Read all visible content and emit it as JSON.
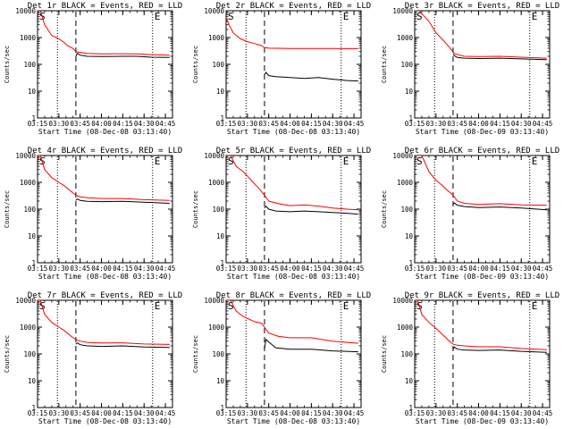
{
  "figure": {
    "background": "#ffffff",
    "colors": {
      "events": "#000000",
      "lld": "#ff0000",
      "axes": "#000000"
    }
  },
  "chart_data": [
    {
      "type": "line",
      "title": "Det 1r BLACK = Events, RED = LLD",
      "xlabel": "Start Time (08-Dec-08 03:13:40)",
      "ylabel": "Counts/sec",
      "yscale": "log",
      "ylim": [
        1,
        10000
      ],
      "y_ticks": [
        "1",
        "10",
        "100",
        "1000",
        "10000"
      ],
      "xlim": [
        "03:15",
        "04:50"
      ],
      "x_ticks": [
        "03:15",
        "03:30",
        "03:45",
        "04:00",
        "04:15",
        "04:30",
        "04:45"
      ],
      "corner_labels": {
        "left": "S",
        "right": "E"
      },
      "markers": [
        {
          "time": "03:29",
          "style": "dotted"
        },
        {
          "time": "03:42",
          "style": "dashed"
        },
        {
          "time": "04:36",
          "style": "dotted"
        }
      ],
      "series": [
        {
          "name": "LLD",
          "color": "#ff0000",
          "x": [
            "03:13",
            "03:17",
            "03:20",
            "03:25",
            "03:30",
            "03:33",
            "03:36",
            "03:40",
            "03:42",
            "03:44",
            "03:50",
            "04:00",
            "04:15",
            "04:25",
            "04:35",
            "04:48"
          ],
          "y": [
            10000,
            10000,
            3000,
            1200,
            900,
            700,
            500,
            390,
            300,
            285,
            255,
            245,
            250,
            245,
            230,
            220
          ]
        },
        {
          "name": "Events",
          "color": "#000000",
          "x": [
            "03:42",
            "03:43",
            "03:45",
            "03:50",
            "04:00",
            "04:15",
            "04:25",
            "04:35",
            "04:48"
          ],
          "y": [
            200,
            260,
            220,
            200,
            195,
            200,
            200,
            185,
            180
          ]
        }
      ]
    },
    {
      "type": "line",
      "title": "Det 2r BLACK = Events, RED = LLD",
      "xlabel": "Start Time (08-Dec-08 03:13:40)",
      "ylabel": "Counts/sec",
      "yscale": "log",
      "ylim": [
        1,
        10000
      ],
      "y_ticks": [
        "1",
        "10",
        "100",
        "1000",
        "10000"
      ],
      "xlim": [
        "03:15",
        "04:50"
      ],
      "x_ticks": [
        "03:15",
        "03:30",
        "03:45",
        "04:00",
        "04:15",
        "04:30",
        "04:45"
      ],
      "corner_labels": {
        "left": "S",
        "right": "E"
      },
      "markers": [
        {
          "time": "03:29",
          "style": "dotted"
        },
        {
          "time": "03:42",
          "style": "dashed"
        },
        {
          "time": "04:36",
          "style": "dotted"
        }
      ],
      "series": [
        {
          "name": "LLD",
          "color": "#ff0000",
          "x": [
            "03:13",
            "03:17",
            "03:20",
            "03:25",
            "03:30",
            "03:35",
            "03:40",
            "03:42",
            "03:45",
            "04:00",
            "04:15",
            "04:30",
            "04:48"
          ],
          "y": [
            10000,
            3000,
            1500,
            900,
            700,
            600,
            500,
            420,
            400,
            390,
            390,
            390,
            385
          ]
        },
        {
          "name": "Events",
          "color": "#000000",
          "x": [
            "03:42",
            "03:43",
            "03:45",
            "03:50",
            "04:00",
            "04:10",
            "04:20",
            "04:30",
            "04:40",
            "04:48"
          ],
          "y": [
            40,
            50,
            38,
            35,
            32,
            30,
            32,
            28,
            25,
            24
          ]
        }
      ]
    },
    {
      "type": "line",
      "title": "Det 3r BLACK = Events, RED = LLD",
      "xlabel": "Start Time (08-Dec-09 03:13:40)",
      "ylabel": "Counts/sec",
      "yscale": "log",
      "ylim": [
        1,
        10000
      ],
      "y_ticks": [
        "1",
        "10",
        "100",
        "1000",
        "10000"
      ],
      "xlim": [
        "03:15",
        "04:50"
      ],
      "x_ticks": [
        "03:15",
        "03:30",
        "03:45",
        "04:00",
        "04:15",
        "04:30",
        "04:45"
      ],
      "corner_labels": {
        "left": "S",
        "right": "E"
      },
      "markers": [
        {
          "time": "03:29",
          "style": "dotted"
        },
        {
          "time": "03:42",
          "style": "dashed"
        },
        {
          "time": "04:36",
          "style": "dotted"
        }
      ],
      "series": [
        {
          "name": "LLD",
          "color": "#ff0000",
          "x": [
            "03:13",
            "03:18",
            "03:25",
            "03:30",
            "03:35",
            "03:40",
            "03:43",
            "03:50",
            "04:00",
            "04:15",
            "04:30",
            "04:48"
          ],
          "y": [
            10000,
            10000,
            4000,
            1500,
            800,
            400,
            250,
            200,
            195,
            200,
            185,
            170
          ]
        },
        {
          "name": "Events",
          "color": "#000000",
          "x": [
            "03:42",
            "03:43",
            "03:45",
            "03:50",
            "04:00",
            "04:15",
            "04:30",
            "04:48"
          ],
          "y": [
            240,
            210,
            180,
            170,
            165,
            170,
            160,
            150
          ]
        }
      ]
    },
    {
      "type": "line",
      "title": "Det 4r BLACK = Events, RED = LLD",
      "xlabel": "Start Time (08-Dec-08 03:13:40)",
      "ylabel": "Counts/sec",
      "yscale": "log",
      "ylim": [
        1,
        10000
      ],
      "y_ticks": [
        "1",
        "10",
        "100",
        "1000",
        "10000"
      ],
      "xlim": [
        "03:15",
        "04:50"
      ],
      "x_ticks": [
        "03:15",
        "03:30",
        "03:45",
        "04:00",
        "04:15",
        "04:30",
        "04:45"
      ],
      "corner_labels": {
        "left": "S",
        "right": "E"
      },
      "markers": [
        {
          "time": "03:29",
          "style": "dotted"
        },
        {
          "time": "03:42",
          "style": "dashed"
        },
        {
          "time": "04:36",
          "style": "dotted"
        }
      ],
      "series": [
        {
          "name": "LLD",
          "color": "#ff0000",
          "x": [
            "03:13",
            "03:17",
            "03:20",
            "03:25",
            "03:30",
            "03:33",
            "03:36",
            "03:40",
            "03:42",
            "03:45",
            "03:50",
            "04:00",
            "04:15",
            "04:30",
            "04:48"
          ],
          "y": [
            10000,
            10000,
            3000,
            1500,
            1000,
            800,
            600,
            400,
            330,
            290,
            265,
            250,
            250,
            225,
            210
          ]
        },
        {
          "name": "Events",
          "color": "#000000",
          "x": [
            "03:42",
            "03:43",
            "03:45",
            "03:50",
            "04:00",
            "04:15",
            "04:30",
            "04:48"
          ],
          "y": [
            210,
            240,
            210,
            195,
            190,
            195,
            180,
            165
          ]
        }
      ]
    },
    {
      "type": "line",
      "title": "Det 5r BLACK = Events, RED = LLD",
      "xlabel": "Start Time (08-Dec-08 03:13:40)",
      "ylabel": "Counts/sec",
      "yscale": "log",
      "ylim": [
        1,
        10000
      ],
      "y_ticks": [
        "1",
        "10",
        "100",
        "1000",
        "10000"
      ],
      "xlim": [
        "03:15",
        "04:50"
      ],
      "x_ticks": [
        "03:15",
        "03:30",
        "03:45",
        "04:00",
        "04:15",
        "04:30",
        "04:45"
      ],
      "corner_labels": {
        "left": "S",
        "right": "E"
      },
      "markers": [
        {
          "time": "03:29",
          "style": "dotted"
        },
        {
          "time": "03:42",
          "style": "dashed"
        },
        {
          "time": "04:36",
          "style": "dotted"
        }
      ],
      "series": [
        {
          "name": "LLD",
          "color": "#ff0000",
          "x": [
            "03:13",
            "03:18",
            "03:22",
            "03:27",
            "03:31",
            "03:34",
            "03:38",
            "03:42",
            "03:45",
            "03:52",
            "04:00",
            "04:10",
            "04:20",
            "04:30",
            "04:40",
            "04:48"
          ],
          "y": [
            10000,
            10000,
            4000,
            2500,
            1500,
            1000,
            600,
            330,
            200,
            160,
            135,
            145,
            130,
            110,
            100,
            95
          ]
        },
        {
          "name": "Events",
          "color": "#000000",
          "x": [
            "03:42",
            "03:43",
            "03:45",
            "03:50",
            "04:00",
            "04:10",
            "04:20",
            "04:30",
            "04:40",
            "04:48"
          ],
          "y": [
            110,
            130,
            100,
            85,
            80,
            85,
            80,
            75,
            70,
            65
          ]
        }
      ]
    },
    {
      "type": "line",
      "title": "Det 6r BLACK = Events, RED = LLD",
      "xlabel": "Start Time (08-Dec-09 03:13:40)",
      "ylabel": "Counts/sec",
      "yscale": "log",
      "ylim": [
        1,
        10000
      ],
      "y_ticks": [
        "1",
        "10",
        "100",
        "1000",
        "10000"
      ],
      "xlim": [
        "03:15",
        "04:50"
      ],
      "x_ticks": [
        "03:15",
        "03:30",
        "03:45",
        "04:00",
        "04:15",
        "04:30",
        "04:45"
      ],
      "corner_labels": {
        "left": "S",
        "right": "E"
      },
      "markers": [
        {
          "time": "03:29",
          "style": "dotted"
        },
        {
          "time": "03:42",
          "style": "dashed"
        },
        {
          "time": "04:36",
          "style": "dotted"
        }
      ],
      "series": [
        {
          "name": "LLD",
          "color": "#ff0000",
          "x": [
            "03:13",
            "03:20",
            "03:25",
            "03:30",
            "03:34",
            "03:38",
            "03:42",
            "03:45",
            "03:50",
            "04:00",
            "04:15",
            "04:30",
            "04:48"
          ],
          "y": [
            10000,
            10000,
            2500,
            1200,
            800,
            500,
            330,
            200,
            165,
            150,
            160,
            145,
            140
          ]
        },
        {
          "name": "Events",
          "color": "#000000",
          "x": [
            "03:42",
            "03:43",
            "03:45",
            "03:50",
            "04:00",
            "04:15",
            "04:30",
            "04:48"
          ],
          "y": [
            150,
            170,
            140,
            125,
            115,
            120,
            110,
            95
          ]
        }
      ]
    },
    {
      "type": "line",
      "title": "Det 7r BLACK = Events, RED = LLD",
      "xlabel": "Start Time (08-Dec-08 03:13:40)",
      "ylabel": "Counts/sec",
      "yscale": "log",
      "ylim": [
        1,
        10000
      ],
      "y_ticks": [
        "1",
        "10",
        "100",
        "1000",
        "10000"
      ],
      "xlim": [
        "03:15",
        "04:50"
      ],
      "x_ticks": [
        "03:15",
        "03:30",
        "03:45",
        "04:00",
        "04:15",
        "04:30",
        "04:45"
      ],
      "corner_labels": {
        "left": "S",
        "right": "E"
      },
      "markers": [
        {
          "time": "03:29",
          "style": "dotted"
        },
        {
          "time": "03:42",
          "style": "dashed"
        },
        {
          "time": "04:36",
          "style": "dotted"
        }
      ],
      "series": [
        {
          "name": "LLD",
          "color": "#ff0000",
          "x": [
            "03:13",
            "03:17",
            "03:20",
            "03:25",
            "03:30",
            "03:33",
            "03:36",
            "03:40",
            "03:42",
            "03:45",
            "03:50",
            "04:00",
            "04:15",
            "04:30",
            "04:48"
          ],
          "y": [
            10000,
            10000,
            3000,
            1500,
            1000,
            800,
            600,
            400,
            340,
            300,
            270,
            255,
            260,
            235,
            225
          ]
        },
        {
          "name": "Events",
          "color": "#000000",
          "x": [
            "03:42",
            "03:43",
            "03:45",
            "03:50",
            "04:00",
            "04:15",
            "04:30",
            "04:48"
          ],
          "y": [
            230,
            260,
            220,
            200,
            190,
            200,
            180,
            175
          ]
        }
      ]
    },
    {
      "type": "line",
      "title": "Det 8r BLACK = Events, RED = LLD",
      "xlabel": "Start Time (08-Dec-08 03:13:40)",
      "ylabel": "Counts/sec",
      "yscale": "log",
      "ylim": [
        1,
        10000
      ],
      "y_ticks": [
        "1",
        "10",
        "100",
        "1000",
        "10000"
      ],
      "xlim": [
        "03:15",
        "04:50"
      ],
      "x_ticks": [
        "03:15",
        "03:30",
        "03:45",
        "04:00",
        "04:15",
        "04:30",
        "04:45"
      ],
      "corner_labels": {
        "left": "S",
        "right": "E"
      },
      "markers": [
        {
          "time": "03:29",
          "style": "dotted"
        },
        {
          "time": "03:42",
          "style": "dashed"
        },
        {
          "time": "04:36",
          "style": "dotted"
        }
      ],
      "series": [
        {
          "name": "LLD",
          "color": "#ff0000",
          "x": [
            "03:13",
            "03:18",
            "03:22",
            "03:27",
            "03:31",
            "03:35",
            "03:40",
            "03:42",
            "03:45",
            "03:52",
            "04:00",
            "04:15",
            "04:30",
            "04:48"
          ],
          "y": [
            10000,
            10000,
            4000,
            2500,
            2000,
            1600,
            1400,
            1000,
            600,
            450,
            400,
            400,
            300,
            250
          ]
        },
        {
          "name": "Events",
          "color": "#000000",
          "x": [
            "03:42",
            "03:43",
            "03:45",
            "03:50",
            "04:00",
            "04:15",
            "04:30",
            "04:48"
          ],
          "y": [
            150,
            350,
            280,
            170,
            150,
            150,
            130,
            120
          ]
        }
      ]
    },
    {
      "type": "line",
      "title": "Det 9r BLACK = Events, RED = LLD",
      "xlabel": "Start Time (08-Dec-09 03:13:40)",
      "ylabel": "Counts/sec",
      "yscale": "log",
      "ylim": [
        1,
        10000
      ],
      "y_ticks": [
        "1",
        "10",
        "100",
        "1000",
        "10000"
      ],
      "xlim": [
        "03:15",
        "04:50"
      ],
      "x_ticks": [
        "03:15",
        "03:30",
        "03:45",
        "04:00",
        "04:15",
        "04:30",
        "04:45"
      ],
      "corner_labels": {
        "left": "S",
        "right": "E"
      },
      "markers": [
        {
          "time": "03:29",
          "style": "dotted"
        },
        {
          "time": "03:42",
          "style": "dashed"
        },
        {
          "time": "04:36",
          "style": "dotted"
        }
      ],
      "series": [
        {
          "name": "LLD",
          "color": "#ff0000",
          "x": [
            "03:13",
            "03:17",
            "03:20",
            "03:25",
            "03:30",
            "03:35",
            "03:40",
            "03:42",
            "03:45",
            "03:50",
            "04:00",
            "04:15",
            "04:30",
            "04:48"
          ],
          "y": [
            10000,
            10000,
            3000,
            1500,
            900,
            500,
            280,
            230,
            210,
            200,
            185,
            185,
            160,
            145
          ]
        },
        {
          "name": "Events",
          "color": "#000000",
          "x": [
            "03:42",
            "03:43",
            "03:45",
            "03:50",
            "04:00",
            "04:15",
            "04:30",
            "04:48"
          ],
          "y": [
            150,
            180,
            150,
            140,
            135,
            140,
            125,
            115
          ]
        }
      ]
    }
  ]
}
